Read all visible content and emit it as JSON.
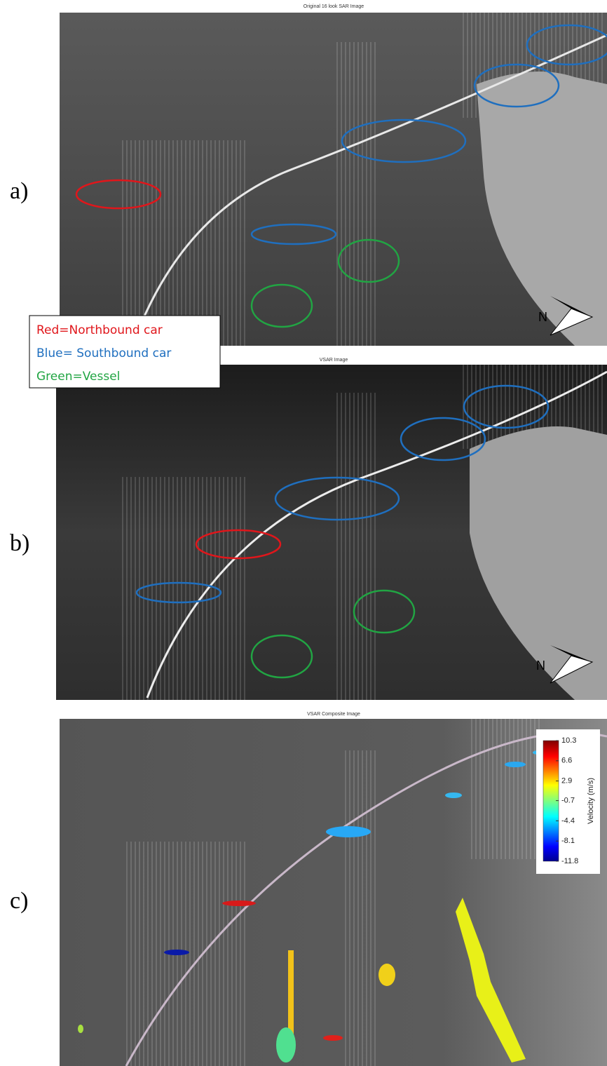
{
  "panels": [
    {
      "label": "a)",
      "title": "Original 16 look SAR Image",
      "north": "N"
    },
    {
      "label": "b)",
      "title": "VSAR Image",
      "north": "N"
    },
    {
      "label": "c)",
      "title": "VSAR Composite Image"
    }
  ],
  "legend": [
    "Red=Northbound car",
    "Blue= Southbound car",
    "Green=Vessel"
  ],
  "colorbar": {
    "label": "Velocity (m/s)",
    "lim": [
      -11.8,
      10.3
    ],
    "ticks": [
      10.3,
      6.6,
      2.9,
      -0.7,
      -4.4,
      -8.1,
      -11.8
    ]
  }
}
